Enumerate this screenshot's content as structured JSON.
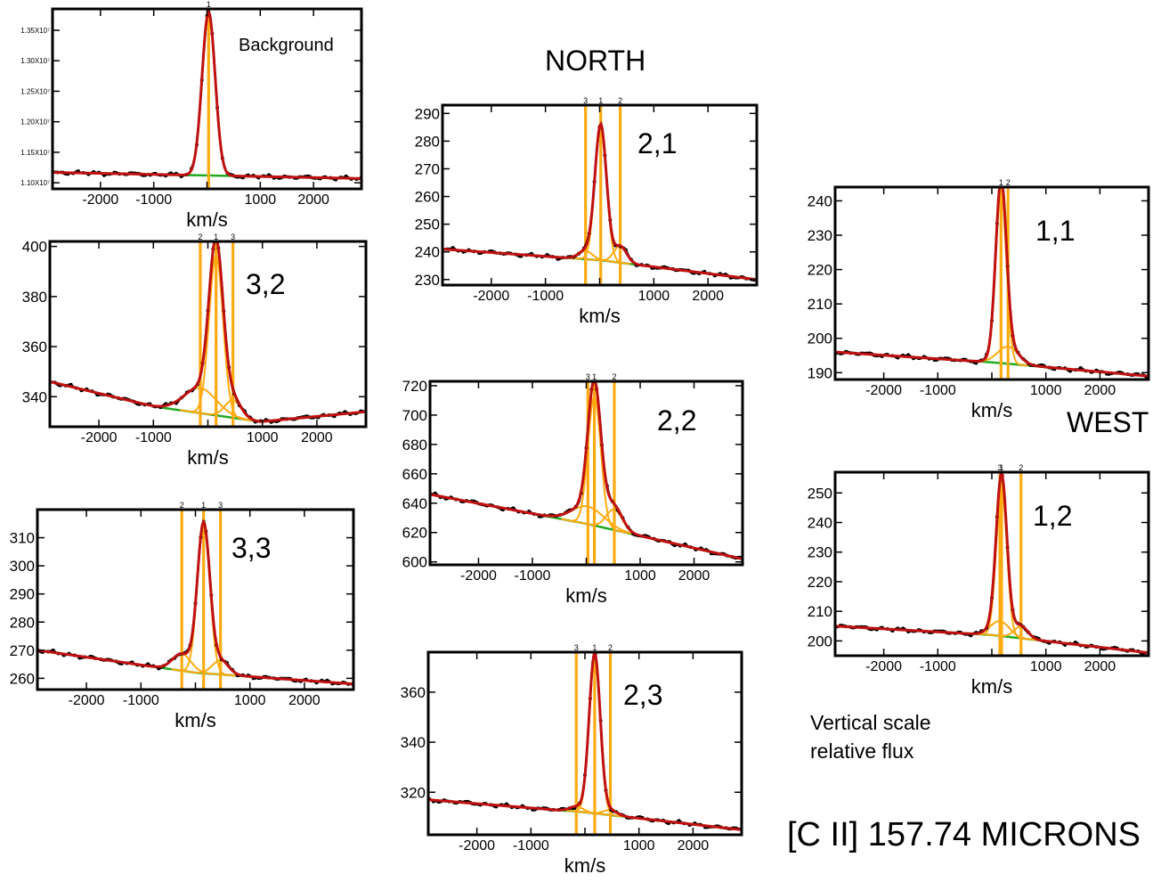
{
  "labels": {
    "north": "NORTH",
    "west": "WEST",
    "note_line1": "Vertical scale",
    "note_line2": "relative flux",
    "title": "[C II] 157.74 MICRONS"
  },
  "colors": {
    "data_trace": "#000000",
    "model_fit": "#c01010",
    "continuum": "#22aa22",
    "components": "#ffaa11"
  },
  "chart_data": [
    {
      "type": "line",
      "panel": "Background",
      "xlabel": "km/s",
      "xlim": [
        -2900,
        2900
      ],
      "ylim": [
        10900000,
        13850000
      ],
      "xticks": [
        -2000,
        -1000,
        0,
        1000,
        2000
      ],
      "xtick_labels": [
        "-2000",
        "-1000",
        "0",
        "1000",
        "2000"
      ],
      "yticks": [
        11000000,
        11500000,
        12000000,
        12500000,
        13000000,
        13500000
      ],
      "ytick_labels": [
        "1.10X10⁷",
        "1.15X10⁷",
        "1.20X10⁷",
        "1.25X10⁷",
        "1.30X10⁷",
        "1.35X10⁷"
      ],
      "continuum": [
        11170000,
        11070000
      ],
      "components": [
        {
          "label": "1",
          "center": 30,
          "amplitude": 2680000,
          "fwhm": 290
        }
      ]
    },
    {
      "type": "line",
      "panel": "3,2",
      "xlabel": "km/s",
      "xlim": [
        -2900,
        2900
      ],
      "ylim": [
        328,
        402
      ],
      "xticks": [
        -2000,
        -1000,
        0,
        1000,
        2000
      ],
      "xtick_labels": [
        "-2000",
        "-1000",
        "0",
        "1000",
        "2000"
      ],
      "yticks": [
        340,
        360,
        380,
        400
      ],
      "ytick_labels": [
        "340",
        "360",
        "380",
        "400"
      ],
      "continuum": [
        346,
        336,
        330,
        334
      ],
      "components": [
        {
          "label": "2",
          "center": -140,
          "amplitude": 10,
          "fwhm": 700
        },
        {
          "label": "1",
          "center": 150,
          "amplitude": 64,
          "fwhm": 300
        },
        {
          "label": "3",
          "center": 460,
          "amplitude": 7,
          "fwhm": 350
        }
      ]
    },
    {
      "type": "line",
      "panel": "3,3",
      "xlabel": "km/s",
      "xlim": [
        -2900,
        2900
      ],
      "ylim": [
        256,
        320
      ],
      "xticks": [
        -2000,
        -1000,
        0,
        1000,
        2000
      ],
      "xtick_labels": [
        "-2000",
        "-1000",
        "0",
        "1000",
        "2000"
      ],
      "yticks": [
        260,
        270,
        280,
        290,
        300,
        310
      ],
      "ytick_labels": [
        "260",
        "270",
        "280",
        "290",
        "300",
        "310"
      ],
      "continuum": [
        270,
        262,
        258
      ],
      "components": [
        {
          "label": "2",
          "center": -250,
          "amplitude": 6,
          "fwhm": 400
        },
        {
          "label": "1",
          "center": 150,
          "amplitude": 53,
          "fwhm": 270
        },
        {
          "label": "3",
          "center": 460,
          "amplitude": 5,
          "fwhm": 350
        }
      ]
    },
    {
      "type": "line",
      "panel": "2,1",
      "xlabel": "km/s",
      "xlim": [
        -2900,
        2900
      ],
      "ylim": [
        228,
        293
      ],
      "xticks": [
        -2000,
        -1000,
        0,
        1000,
        2000
      ],
      "xtick_labels": [
        "-2000",
        "-1000",
        "0",
        "1000",
        "2000"
      ],
      "yticks": [
        230,
        240,
        250,
        260,
        270,
        280,
        290
      ],
      "ytick_labels": [
        "230",
        "240",
        "250",
        "260",
        "270",
        "280",
        "290"
      ],
      "continuum": [
        241,
        237,
        230
      ],
      "components": [
        {
          "label": "3",
          "center": -260,
          "amplitude": 3,
          "fwhm": 300
        },
        {
          "label": "1",
          "center": 20,
          "amplitude": 49,
          "fwhm": 250
        },
        {
          "label": "2",
          "center": 380,
          "amplitude": 6,
          "fwhm": 280
        }
      ]
    },
    {
      "type": "line",
      "panel": "2,2",
      "xlabel": "km/s",
      "xlim": [
        -2900,
        2900
      ],
      "ylim": [
        598,
        723
      ],
      "xticks": [
        -2000,
        -1000,
        0,
        1000,
        2000
      ],
      "xtick_labels": [
        "-2000",
        "-1000",
        "0",
        "1000",
        "2000"
      ],
      "yticks": [
        600,
        620,
        640,
        660,
        680,
        700,
        720
      ],
      "ytick_labels": [
        "600",
        "620",
        "640",
        "660",
        "680",
        "700",
        "720"
      ],
      "continuum": [
        646,
        626,
        602
      ],
      "components": [
        {
          "label": "3",
          "center": 30,
          "amplitude": 12,
          "fwhm": 700
        },
        {
          "label": "1",
          "center": 150,
          "amplitude": 88,
          "fwhm": 280
        },
        {
          "label": "2",
          "center": 520,
          "amplitude": 14,
          "fwhm": 350
        }
      ]
    },
    {
      "type": "line",
      "panel": "2,3",
      "xlabel": "km/s",
      "xlim": [
        -2900,
        2900
      ],
      "ylim": [
        303,
        376
      ],
      "xticks": [
        -2000,
        -1000,
        0,
        1000,
        2000
      ],
      "xtick_labels": [
        "-2000",
        "-1000",
        "0",
        "1000",
        "2000"
      ],
      "yticks": [
        320,
        340,
        360
      ],
      "ytick_labels": [
        "320",
        "340",
        "360"
      ],
      "continuum": [
        317,
        312,
        305
      ],
      "components": [
        {
          "label": "3",
          "center": -160,
          "amplitude": 2,
          "fwhm": 300
        },
        {
          "label": "1",
          "center": 180,
          "amplitude": 64,
          "fwhm": 240
        },
        {
          "label": "2",
          "center": 470,
          "amplitude": 2,
          "fwhm": 300
        }
      ]
    },
    {
      "type": "line",
      "panel": "1,1",
      "xlabel": "km/s",
      "xlim": [
        -2900,
        2900
      ],
      "ylim": [
        188,
        244
      ],
      "xticks": [
        -2000,
        -1000,
        0,
        1000,
        2000
      ],
      "xtick_labels": [
        "-2000",
        "-1000",
        "0",
        "1000",
        "2000"
      ],
      "yticks": [
        190,
        200,
        210,
        220,
        230,
        240
      ],
      "ytick_labels": [
        "190",
        "200",
        "210",
        "220",
        "230",
        "240"
      ],
      "continuum": [
        196,
        193,
        189
      ],
      "components": [
        {
          "label": "1",
          "center": 170,
          "amplitude": 50,
          "fwhm": 230
        },
        {
          "label": "2",
          "center": 300,
          "amplitude": 5,
          "fwhm": 450
        }
      ]
    },
    {
      "type": "line",
      "panel": "1,2",
      "xlabel": "km/s",
      "xlim": [
        -2900,
        2900
      ],
      "ylim": [
        195,
        257
      ],
      "xticks": [
        -2000,
        -1000,
        0,
        1000,
        2000
      ],
      "xtick_labels": [
        "-2000",
        "-1000",
        "0",
        "1000",
        "2000"
      ],
      "yticks": [
        200,
        210,
        220,
        230,
        240,
        250
      ],
      "ytick_labels": [
        "200",
        "210",
        "220",
        "230",
        "240",
        "250"
      ],
      "continuum": [
        205,
        202,
        196
      ],
      "components": [
        {
          "label": "3",
          "center": 150,
          "amplitude": 5,
          "fwhm": 400
        },
        {
          "label": "1",
          "center": 180,
          "amplitude": 50,
          "fwhm": 230
        },
        {
          "label": "2",
          "center": 540,
          "amplitude": 4,
          "fwhm": 300
        }
      ]
    }
  ]
}
